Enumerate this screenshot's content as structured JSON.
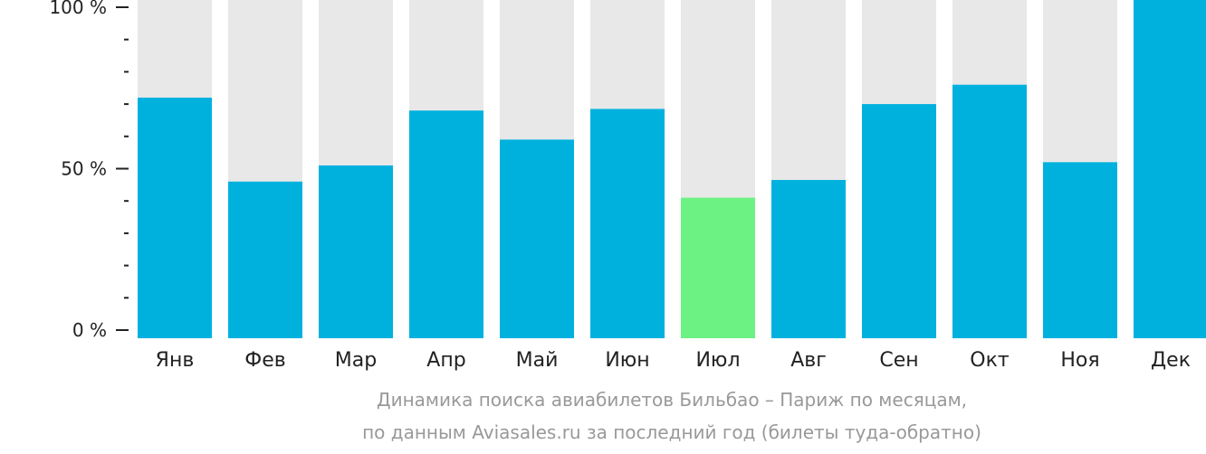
{
  "chart_data": {
    "type": "bar",
    "categories": [
      "Янв",
      "Фев",
      "Мар",
      "Апр",
      "Май",
      "Июн",
      "Июл",
      "Авг",
      "Сен",
      "Окт",
      "Ноя",
      "Дек"
    ],
    "values": [
      72,
      46,
      51,
      68,
      59,
      68.5,
      41,
      46.5,
      70,
      76,
      52,
      100
    ],
    "highlight_index": 6,
    "ylim": [
      0,
      100
    ],
    "yticks": [
      {
        "value": 100,
        "label": "100 %"
      },
      {
        "value": 50,
        "label": "50 %"
      },
      {
        "value": 0,
        "label": "0 %"
      }
    ],
    "minor_tick_step": 10,
    "colors": {
      "bar": "#00b1de",
      "highlight": "#6cf283",
      "background_bar": "#e8e8e8",
      "axis": "#222222"
    },
    "grid": false,
    "legend": "none"
  },
  "caption": {
    "line1": "Динамика поиска авиабилетов Бильбао – Париж по месяцам,",
    "line2": "по данным Aviasales.ru за последний год (билеты туда-обратно)"
  }
}
